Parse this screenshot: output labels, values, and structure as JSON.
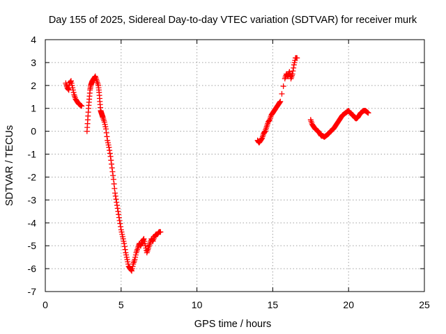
{
  "chart_data": {
    "type": "scatter",
    "title": "Day 155 of 2025, Sidereal Day-to-day VTEC variation (SDTVAR) for receiver murk",
    "xlabel": "GPS time / hours",
    "ylabel": "SDTVAR / TECUs",
    "xlim": [
      0,
      25
    ],
    "ylim": [
      -7,
      4
    ],
    "xticks": [
      "0",
      "5",
      "10",
      "15",
      "20",
      "25"
    ],
    "yticks": [
      "-7",
      "-6",
      "-5",
      "-4",
      "-3",
      "-2",
      "-1",
      "0",
      "1",
      "2",
      "3",
      "4"
    ],
    "grid": true,
    "marker": "plus",
    "color": "#ff0000",
    "series": [
      {
        "x": [
          1.35,
          1.45,
          1.55,
          1.6,
          1.7,
          1.8,
          1.9,
          2.0,
          2.1,
          2.2,
          2.3,
          2.4,
          2.75,
          2.8,
          2.85,
          2.9,
          2.95,
          3.0,
          3.05,
          3.1,
          3.2,
          3.3,
          3.4,
          3.5,
          3.55,
          3.6,
          3.65,
          3.7,
          3.75,
          3.8,
          3.9,
          4.0,
          4.1,
          4.2,
          4.3,
          4.4,
          4.5,
          4.6,
          4.7,
          4.8,
          4.9,
          5.0,
          5.1,
          5.2,
          5.3,
          5.4,
          5.5,
          5.6,
          5.7,
          5.8,
          5.9,
          6.0,
          6.1,
          6.2,
          6.3,
          6.4,
          6.5,
          6.6,
          6.7,
          6.8,
          6.9,
          7.0,
          7.1,
          7.2,
          7.3,
          7.4,
          7.5,
          7.6
        ],
        "y": [
          2.1,
          1.9,
          1.8,
          2.1,
          2.2,
          1.9,
          1.6,
          1.4,
          1.3,
          1.2,
          1.15,
          1.1,
          0.0,
          0.5,
          1.0,
          1.4,
          1.8,
          2.0,
          2.1,
          2.2,
          2.3,
          2.4,
          2.2,
          2.0,
          1.7,
          1.3,
          0.9,
          0.8,
          0.7,
          0.6,
          0.4,
          0.1,
          -0.4,
          -0.7,
          -1.1,
          -1.6,
          -2.1,
          -2.7,
          -3.1,
          -3.5,
          -3.9,
          -4.3,
          -4.6,
          -4.9,
          -5.3,
          -5.6,
          -5.9,
          -6.0,
          -6.1,
          -5.8,
          -5.6,
          -5.3,
          -5.1,
          -4.9,
          -5.0,
          -4.8,
          -4.7,
          -5.0,
          -5.3,
          -5.1,
          -4.9,
          -4.7,
          -4.8,
          -4.6,
          -4.5,
          -4.5,
          -4.4,
          -4.4
        ]
      },
      {
        "x": [
          14.0,
          14.1,
          14.2,
          14.3,
          14.4,
          14.5,
          14.6,
          14.7,
          14.8,
          14.9,
          15.0,
          15.1,
          15.2,
          15.3,
          15.4,
          15.5,
          15.8,
          15.9,
          16.0,
          16.1,
          16.2,
          16.3,
          16.4,
          16.5,
          16.6
        ],
        "y": [
          -0.4,
          -0.5,
          -0.4,
          -0.3,
          -0.1,
          0.0,
          0.2,
          0.4,
          0.5,
          0.7,
          0.8,
          0.9,
          1.0,
          1.1,
          1.2,
          1.3,
          2.3,
          2.5,
          2.4,
          2.6,
          2.3,
          2.5,
          2.9,
          3.2,
          3.2
        ]
      },
      {
        "x": [
          17.5,
          17.6,
          17.7,
          17.8,
          17.9,
          18.0,
          18.1,
          18.2,
          18.3,
          18.4,
          18.5,
          18.6,
          18.7,
          18.8,
          18.9,
          19.0,
          19.1,
          19.2,
          19.3,
          19.4,
          19.5,
          19.6,
          19.7,
          19.8,
          19.9,
          20.0,
          20.1,
          20.2,
          20.3,
          20.4,
          20.5,
          20.6,
          20.7,
          20.8,
          20.9,
          21.0,
          21.1,
          21.2,
          21.3
        ],
        "y": [
          0.5,
          0.3,
          0.2,
          0.1,
          0.05,
          0.0,
          -0.1,
          -0.2,
          -0.2,
          -0.25,
          -0.2,
          -0.15,
          -0.1,
          0.0,
          0.05,
          0.1,
          0.2,
          0.3,
          0.4,
          0.5,
          0.6,
          0.7,
          0.75,
          0.8,
          0.85,
          0.9,
          0.8,
          0.75,
          0.7,
          0.6,
          0.55,
          0.6,
          0.7,
          0.8,
          0.85,
          0.9,
          0.9,
          0.85,
          0.8
        ]
      }
    ]
  }
}
